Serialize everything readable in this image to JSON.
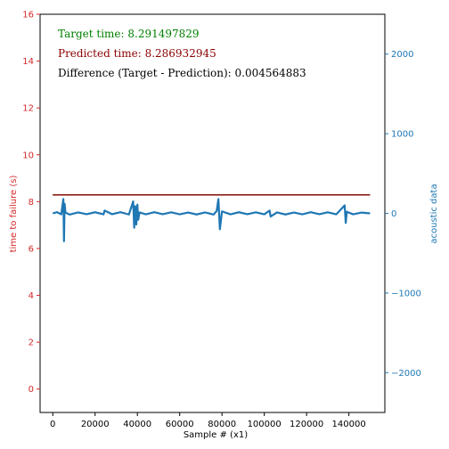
{
  "chart_data": {
    "type": "line",
    "xlabel": "Sample # (x1)",
    "ylabel_left": "time to failure (s)",
    "ylabel_right": "acoustic data",
    "xlim": [
      -6000,
      157000
    ],
    "ylim_left": [
      -1,
      16
    ],
    "ylim_right": [
      -2500,
      2500
    ],
    "x_ticks": [
      0,
      20000,
      40000,
      60000,
      80000,
      100000,
      120000,
      140000
    ],
    "y_left_ticks": [
      0,
      2,
      4,
      6,
      8,
      10,
      12,
      14,
      16
    ],
    "y_right_ticks": [
      -2000,
      -1000,
      0,
      1000,
      2000
    ],
    "x_tick_labels": [
      "0",
      "20000",
      "40000",
      "60000",
      "80000",
      "100000",
      "120000",
      "140000"
    ],
    "y_left_tick_labels": [
      "0",
      "2",
      "4",
      "6",
      "8",
      "10",
      "12",
      "14",
      "16"
    ],
    "y_right_tick_labels": [
      "−2000",
      "−1000",
      "0",
      "1000",
      "2000"
    ],
    "series": [
      {
        "axis": "left",
        "color": "#2ca02c",
        "x": [
          0,
          150000
        ],
        "values": [
          8.291497829,
          8.291497829
        ]
      },
      {
        "axis": "left",
        "color": "#8b0000",
        "x": [
          0,
          150000
        ],
        "values": [
          8.286932945,
          8.286932945
        ]
      },
      {
        "axis": "right",
        "color": "#1f77b4",
        "x": [
          0,
          2000,
          4000,
          5000,
          5300,
          5600,
          6000,
          8000,
          12000,
          16000,
          20000,
          24000,
          24500,
          28000,
          32000,
          36000,
          38000,
          38500,
          39000,
          39500,
          40000,
          40400,
          41000,
          44000,
          48000,
          52000,
          56000,
          60000,
          64000,
          68000,
          72000,
          76000,
          77500,
          78300,
          79000,
          80000,
          84000,
          88000,
          92000,
          96000,
          100000,
          102500,
          103000,
          106000,
          110000,
          114000,
          118000,
          122000,
          126000,
          130000,
          134000,
          138000,
          138500,
          139000,
          142000,
          146000,
          150000
        ],
        "values": [
          0,
          15,
          -12,
          180,
          -350,
          120,
          10,
          -15,
          12,
          -10,
          14,
          -12,
          35,
          -10,
          15,
          -14,
          150,
          -180,
          90,
          -140,
          110,
          -80,
          12,
          -12,
          15,
          -10,
          13,
          -12,
          10,
          -14,
          12,
          -15,
          30,
          180,
          -200,
          25,
          -12,
          14,
          -10,
          13,
          -12,
          35,
          -40,
          12,
          -14,
          10,
          -12,
          15,
          -10,
          13,
          -12,
          100,
          -120,
          20,
          -12,
          10,
          0
        ]
      }
    ],
    "annotations": [
      {
        "text": "Target time: 8.291497829",
        "color": "#008000"
      },
      {
        "text": "Predicted time: 8.286932945",
        "color": "#8b0000"
      },
      {
        "text": "Difference (Target - Prediction): 0.004564883",
        "color": "#000000"
      }
    ]
  }
}
